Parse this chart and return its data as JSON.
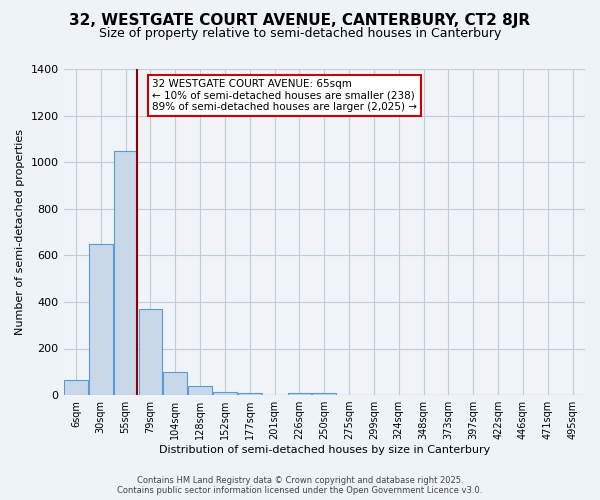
{
  "title": "32, WESTGATE COURT AVENUE, CANTERBURY, CT2 8JR",
  "subtitle": "Size of property relative to semi-detached houses in Canterbury",
  "xlabel": "Distribution of semi-detached houses by size in Canterbury",
  "ylabel": "Number of semi-detached properties",
  "bin_labels": [
    "6sqm",
    "30sqm",
    "55sqm",
    "79sqm",
    "104sqm",
    "128sqm",
    "152sqm",
    "177sqm",
    "201sqm",
    "226sqm",
    "250sqm",
    "275sqm",
    "299sqm",
    "324sqm",
    "348sqm",
    "373sqm",
    "397sqm",
    "422sqm",
    "446sqm",
    "471sqm",
    "495sqm"
  ],
  "bar_values": [
    65,
    650,
    1050,
    370,
    100,
    40,
    15,
    10,
    0,
    8,
    8,
    0,
    0,
    0,
    0,
    0,
    0,
    0,
    0,
    0,
    0
  ],
  "bar_color": "#c8d8e8",
  "bar_edge_color": "#5b9bd5",
  "vline_x": 2.47,
  "vline_color": "#8b0000",
  "annotation_text": "32 WESTGATE COURT AVENUE: 65sqm\n← 10% of semi-detached houses are smaller (238)\n89% of semi-detached houses are larger (2,025) →",
  "annotation_box_color": "#ffffff",
  "annotation_box_edge": "#cc0000",
  "footer_line1": "Contains HM Land Registry data © Crown copyright and database right 2025.",
  "footer_line2": "Contains public sector information licensed under the Open Government Licence v3.0.",
  "bg_color": "#eef3f8",
  "plot_bg_color": "#f0f4f8",
  "grid_color": "#c0ccd8",
  "ylim": [
    0,
    1400
  ],
  "yticks": [
    0,
    200,
    400,
    600,
    800,
    1000,
    1200,
    1400
  ]
}
